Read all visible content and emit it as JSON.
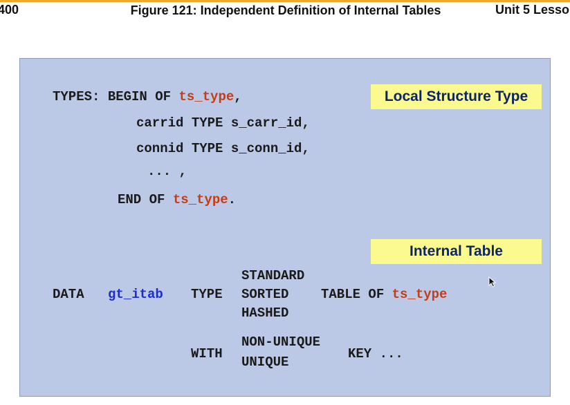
{
  "header": {
    "left": "400",
    "title": "Figure 121: Independent Definition of Internal Tables",
    "right": "Unit 5 Lesso"
  },
  "slide": {
    "types_kw": "TYPES: BEGIN OF ",
    "ts_type": "ts_type",
    "comma": ",",
    "line_carrid": "carrid TYPE s_carr_id,",
    "line_connid": "connid TYPE s_conn_id,",
    "line_dots": "... ,",
    "end_of": "END OF ",
    "period": ".",
    "label_local": "Local Structure Type",
    "label_internal": "Internal Table",
    "data_kw": "DATA",
    "gt_itab": "gt_itab",
    "type_kw": "TYPE",
    "standard": "STANDARD",
    "sorted": "SORTED",
    "hashed": "HASHED",
    "table_of": "TABLE OF ",
    "with_kw": "WITH",
    "non_unique": "NON-UNIQUE",
    "unique": "UNIQUE",
    "key": "KEY ..."
  },
  "colors": {
    "slide_bg": "#bcc9e6",
    "label_bg": "#fbfa8e",
    "keyword_red": "#c63c14",
    "variable_blue": "#1a2ecf"
  }
}
